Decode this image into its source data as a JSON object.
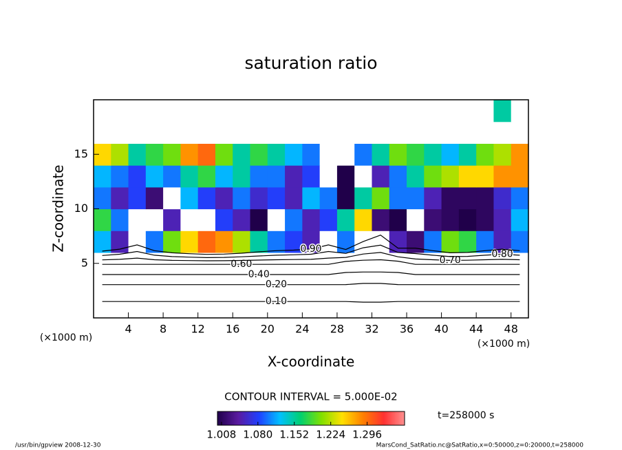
{
  "chart_data": {
    "type": "contour",
    "title": "saturation ratio",
    "x_label": "X-coordinate",
    "y_label": "Z-coordinate",
    "x_unit": "(×1000 m)",
    "y_unit": "(×1000 m)",
    "xlim": [
      0,
      50
    ],
    "ylim": [
      0,
      20
    ],
    "xticks": [
      4,
      8,
      12,
      16,
      20,
      24,
      28,
      32,
      36,
      40,
      44,
      48
    ],
    "yticks": [
      5,
      10,
      15
    ],
    "x": [
      1,
      3,
      5,
      7,
      9,
      11,
      13,
      15,
      17,
      19,
      21,
      23,
      25,
      27,
      29,
      31,
      33,
      35,
      37,
      39,
      41,
      43,
      45,
      47,
      49
    ],
    "y": [
      1,
      3,
      5,
      7,
      9,
      11,
      13,
      15,
      17,
      19
    ],
    "values": [
      [
        0.07,
        0.07,
        0.07,
        0.07,
        0.07,
        0.07,
        0.07,
        0.07,
        0.07,
        0.07,
        0.07,
        0.07,
        0.07,
        0.07,
        0.07,
        0.08,
        0.08,
        0.07,
        0.07,
        0.07,
        0.07,
        0.07,
        0.07,
        0.07,
        0.07
      ],
      [
        0.19,
        0.19,
        0.19,
        0.19,
        0.19,
        0.19,
        0.19,
        0.19,
        0.19,
        0.19,
        0.19,
        0.19,
        0.19,
        0.19,
        0.19,
        0.17,
        0.17,
        0.19,
        0.19,
        0.19,
        0.19,
        0.19,
        0.19,
        0.19,
        0.19
      ],
      [
        0.62,
        0.62,
        0.62,
        0.62,
        0.62,
        0.62,
        0.62,
        0.62,
        0.62,
        0.62,
        0.62,
        0.62,
        0.62,
        0.62,
        0.55,
        0.55,
        0.55,
        0.55,
        0.62,
        0.62,
        0.62,
        0.62,
        0.62,
        0.62,
        0.62
      ],
      [
        1.12,
        1.05,
        0.95,
        1.1,
        1.2,
        1.25,
        1.3,
        1.28,
        1.22,
        1.15,
        1.1,
        1.08,
        1.05,
        0.95,
        1.1,
        0.9,
        0.85,
        1.05,
        1.02,
        1.1,
        1.2,
        1.18,
        1.1,
        1.05,
        1.1
      ],
      [
        1.18,
        1.1,
        0.98,
        0.9,
        1.05,
        0.85,
        0.9,
        1.08,
        1.05,
        1.0,
        0.95,
        1.1,
        1.05,
        1.08,
        1.15,
        1.25,
        1.02,
        1.0,
        0.9,
        1.02,
        1.01,
        1.0,
        1.01,
        1.05,
        1.12
      ],
      [
        1.1,
        1.05,
        1.08,
        1.02,
        0.95,
        1.12,
        1.08,
        1.05,
        1.1,
        1.06,
        1.08,
        1.05,
        1.12,
        1.1,
        1.0,
        1.15,
        1.2,
        1.1,
        1.1,
        1.05,
        1.01,
        1.01,
        1.01,
        1.06,
        1.1
      ],
      [
        1.12,
        1.1,
        1.08,
        1.12,
        1.1,
        1.15,
        1.18,
        1.12,
        1.15,
        1.1,
        1.1,
        1.05,
        1.08,
        0.95,
        1.0,
        0.98,
        1.05,
        1.1,
        1.15,
        1.2,
        1.22,
        1.25,
        1.25,
        1.28,
        1.28
      ],
      [
        1.25,
        1.22,
        1.15,
        1.18,
        1.2,
        1.28,
        1.3,
        1.2,
        1.15,
        1.18,
        1.15,
        1.12,
        1.1,
        0.85,
        0.9,
        1.1,
        1.15,
        1.2,
        1.18,
        1.15,
        1.12,
        1.15,
        1.2,
        1.22,
        1.28
      ],
      [
        0.75,
        0.8,
        0.85,
        0.78,
        0.8,
        0.82,
        0.85,
        0.82,
        0.8,
        0.78,
        0.8,
        0.82,
        0.85,
        0.88,
        0.9,
        0.9,
        0.92,
        0.95,
        0.9,
        0.88,
        0.85,
        0.82,
        0.8,
        0.78,
        0.75
      ],
      [
        0.7,
        0.7,
        0.7,
        0.7,
        0.7,
        0.7,
        0.7,
        0.7,
        0.7,
        0.7,
        0.7,
        0.7,
        0.7,
        0.7,
        0.7,
        0.7,
        0.7,
        0.7,
        0.7,
        0.7,
        0.7,
        0.7,
        0.7,
        1.15,
        0.7
      ]
    ],
    "contours": [
      {
        "value": 0.1,
        "label": "0.10"
      },
      {
        "value": 0.2,
        "label": "0.20"
      },
      {
        "value": 0.4,
        "label": "0.40"
      },
      {
        "value": 0.6,
        "label": "0.60"
      },
      {
        "value": 0.7,
        "label": "0.70"
      },
      {
        "value": 0.8,
        "label": "0.80"
      },
      {
        "value": 0.9,
        "label": "0.90"
      }
    ],
    "contour_interval": "CONTOUR INTERVAL = 5.000E-02",
    "colormap": [
      "#20004a",
      "#5a1aa0",
      "#2040ff",
      "#00c0ff",
      "#00d070",
      "#80e000",
      "#ffe000",
      "#ff8000",
      "#ff3030",
      "#ff9090"
    ],
    "clim": [
      1.0,
      1.37
    ],
    "colorbar_ticks": [
      1.008,
      {
        "value": 1.08,
        "label": "1.080"
      },
      1.152,
      1.224,
      1.296
    ],
    "time_label": "t=258000 s",
    "footer_left": "/usr/bin/gpview   2008-12-30",
    "footer_right": "MarsCond_SatRatio.nc@SatRatio,x=0:50000,z=0:20000,t=258000"
  }
}
